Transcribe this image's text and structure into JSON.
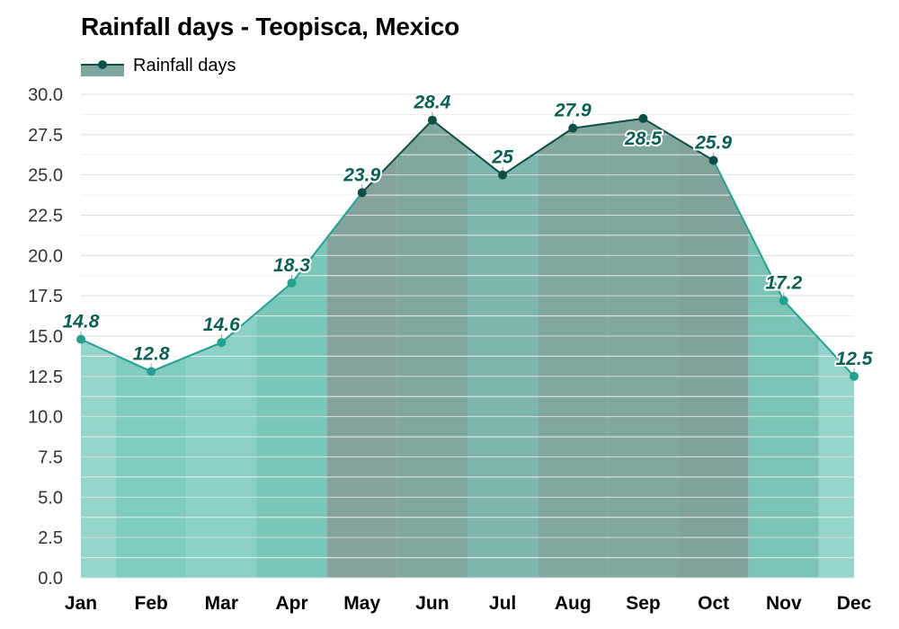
{
  "title": "Rainfall days - Teopisca, Mexico",
  "legend": {
    "label": "Rainfall days"
  },
  "colors": {
    "line_light": "#23a18f",
    "line_dark": "#0d4f45",
    "legend_fill": "#7ea79f",
    "label_text": "#0b5e52"
  },
  "chart_data": {
    "type": "area",
    "title": "Rainfall days - Teopisca, Mexico",
    "xlabel": "",
    "ylabel": "",
    "categories": [
      "Jan",
      "Feb",
      "Mar",
      "Apr",
      "May",
      "Jun",
      "Jul",
      "Aug",
      "Sep",
      "Oct",
      "Nov",
      "Dec"
    ],
    "series": [
      {
        "name": "Rainfall days",
        "values": [
          14.8,
          12.8,
          14.6,
          18.3,
          23.9,
          28.4,
          25,
          27.9,
          28.5,
          25.9,
          17.2,
          12.5
        ],
        "labels": [
          "14.8",
          "12.8",
          "14.6",
          "18.3",
          "23.9",
          "28.4",
          "25",
          "27.9",
          "28.5",
          "25.9",
          "17.2",
          "12.5"
        ]
      }
    ],
    "ylim": [
      0,
      30
    ],
    "yticks": [
      "0.0",
      "2.5",
      "5.0",
      "7.5",
      "10.0",
      "12.5",
      "15.0",
      "17.5",
      "20.0",
      "22.5",
      "25.0",
      "27.5",
      "30.0"
    ],
    "grid": true,
    "legend_position": "top-left",
    "band_colors": [
      "#95d4cb",
      "#7fccc0",
      "#8ad0c6",
      "#7ac6b9",
      "#85a39c",
      "#7fa7a0",
      "#7cb6ad",
      "#80a69e",
      "#80a69e",
      "#7fa29b",
      "#7cc3b7",
      "#95d4cb"
    ]
  }
}
